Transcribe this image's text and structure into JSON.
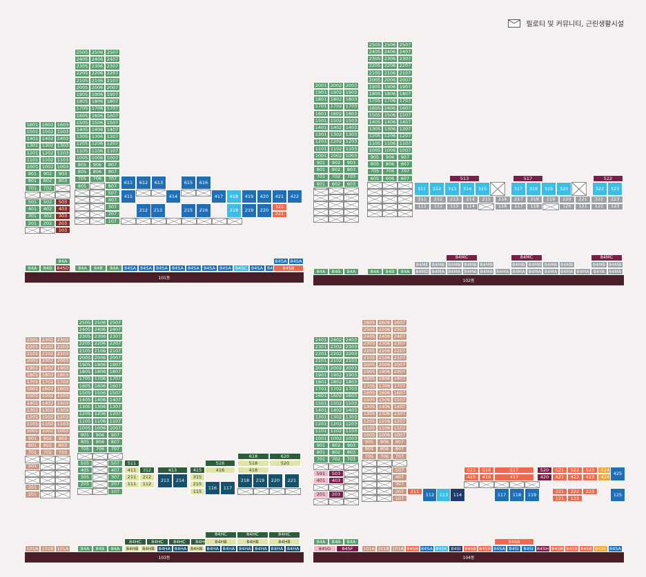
{
  "legend": {
    "icon": "pilotis-symbol",
    "label": "필로티 및 커뮤니티, 근린생활시설"
  },
  "colors": {
    "green": "#5a9e6e",
    "brown": "#c89a86",
    "darkred": "#8b2b25",
    "darkgreen": "#2e5d3c",
    "blue": "#1f6fb8",
    "lightblue": "#3dbde6",
    "salmon": "#f0684d",
    "grey": "#9aa0a6",
    "purple": "#7a1f4a",
    "teal": "#16506a",
    "navy": "#1e3a6e",
    "yellowgreen": "#dfe5a6",
    "orange": "#f2a23c",
    "maroon": "#4a1e26"
  },
  "buildings": [
    {
      "name": "101동"
    },
    {
      "name": "102동"
    },
    {
      "name": "103동"
    },
    {
      "name": "104동"
    }
  ],
  "labels101": {
    "left": [
      "84A",
      "84B"
    ],
    "rows": [
      "84A",
      "84B",
      "84A",
      "84SA",
      "84SA",
      "84SA",
      "84SA",
      "84SA",
      "84SA",
      "84SA",
      "84SC",
      "84SA",
      "84SA",
      "84SB"
    ],
    "top": [
      "84A",
      "84SD",
      "84SA",
      "84SA"
    ]
  },
  "labels102": {
    "rows": [
      "84A",
      "84B",
      "84A",
      "84A",
      "84B",
      "84A",
      "84MD",
      "84MA",
      "84MA",
      "84MA",
      "84MA",
      "84MA",
      "84MA",
      "84MA",
      "84MA",
      "84MA",
      "84MA",
      "84YA",
      "84MA"
    ],
    "top": [
      "84ME",
      "84MB",
      "84MB",
      "84MB",
      "84MB",
      "84MB",
      "84MB",
      "84MB",
      "84MB"
    ],
    "mc": [
      "84MC",
      "84MC",
      "84MC"
    ]
  },
  "labels103": {
    "rows": [
      "101A",
      "101B",
      "101A",
      "84A",
      "84B",
      "84A",
      "84HB",
      "84HB",
      "84HA",
      "84HA",
      "84HB",
      "84HA",
      "84HA",
      "84HA",
      "84HA",
      "84HA",
      "84HA"
    ],
    "hc": [
      "84HC",
      "84HC",
      "84HC",
      "84HC",
      "84HC",
      "84HC",
      "84HC"
    ],
    "hb": [
      "84HB",
      "84HB",
      "84HB"
    ]
  },
  "labels104": {
    "rows": [
      "84SG",
      "84SF",
      "101A",
      "101B",
      "101A",
      "84SB",
      "84SA",
      "84SK",
      "84SI",
      "84SB",
      "84SB",
      "84SA",
      "84SI",
      "84SI",
      "84SH",
      "84SB",
      "84SB",
      "84SB",
      "84SE",
      "84SA"
    ],
    "top": [
      "84A",
      "84B",
      "84A",
      "84SB"
    ]
  }
}
